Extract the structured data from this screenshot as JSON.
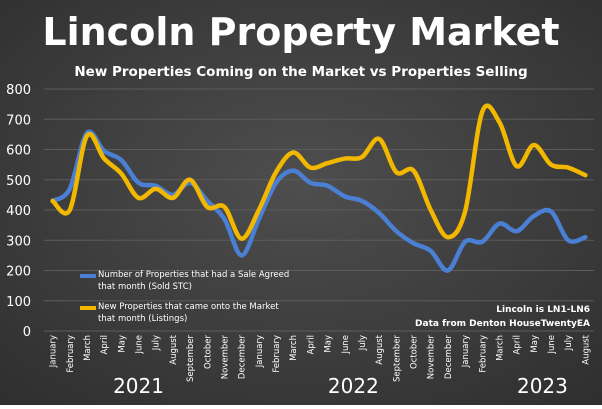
{
  "chart_data": {
    "type": "line",
    "title": "Lincoln Property Market",
    "subtitle": "New Properties Coming on the Market vs Properties Selling",
    "ylim": [
      0,
      800
    ],
    "yticks": [
      0,
      100,
      200,
      300,
      400,
      500,
      600,
      700,
      800
    ],
    "grid": true,
    "legend_placement": "bottom-left",
    "months": [
      "January",
      "February",
      "March",
      "April",
      "May",
      "June",
      "July",
      "August",
      "September",
      "October",
      "November",
      "December",
      "January",
      "February",
      "March",
      "April",
      "May",
      "June",
      "July",
      "August",
      "September",
      "October",
      "November",
      "December",
      "January",
      "February",
      "March",
      "April",
      "May",
      "June",
      "July",
      "August"
    ],
    "year_labels": [
      {
        "text": "2021",
        "center_index": 5
      },
      {
        "text": "2022",
        "center_index": 17.5
      },
      {
        "text": "2023",
        "center_index": 28.5
      }
    ],
    "series": [
      {
        "name": "Number of Properties that had a Sale Agreed that month (Sold STC)",
        "color": "#4a7fd4",
        "values": [
          430,
          470,
          655,
          595,
          565,
          490,
          480,
          450,
          490,
          430,
          370,
          250,
          370,
          490,
          530,
          490,
          480,
          445,
          430,
          390,
          330,
          290,
          265,
          200,
          295,
          295,
          355,
          330,
          380,
          395,
          300,
          310
        ]
      },
      {
        "name": "New Properties that came onto the Market that month  (Listings)",
        "color": "#f2b800",
        "values": [
          430,
          400,
          645,
          570,
          520,
          440,
          470,
          440,
          500,
          410,
          410,
          305,
          400,
          525,
          590,
          540,
          555,
          570,
          575,
          635,
          525,
          530,
          400,
          310,
          395,
          725,
          690,
          545,
          615,
          550,
          540,
          515
        ]
      }
    ],
    "annotation": {
      "line1": "Lincoln is LN1-LN6",
      "line2": "Data from Denton HouseTwentyEA"
    },
    "colors": {
      "background": "#3d3d3d",
      "grid": "#5c5c5c",
      "text": "#ffffff"
    }
  }
}
